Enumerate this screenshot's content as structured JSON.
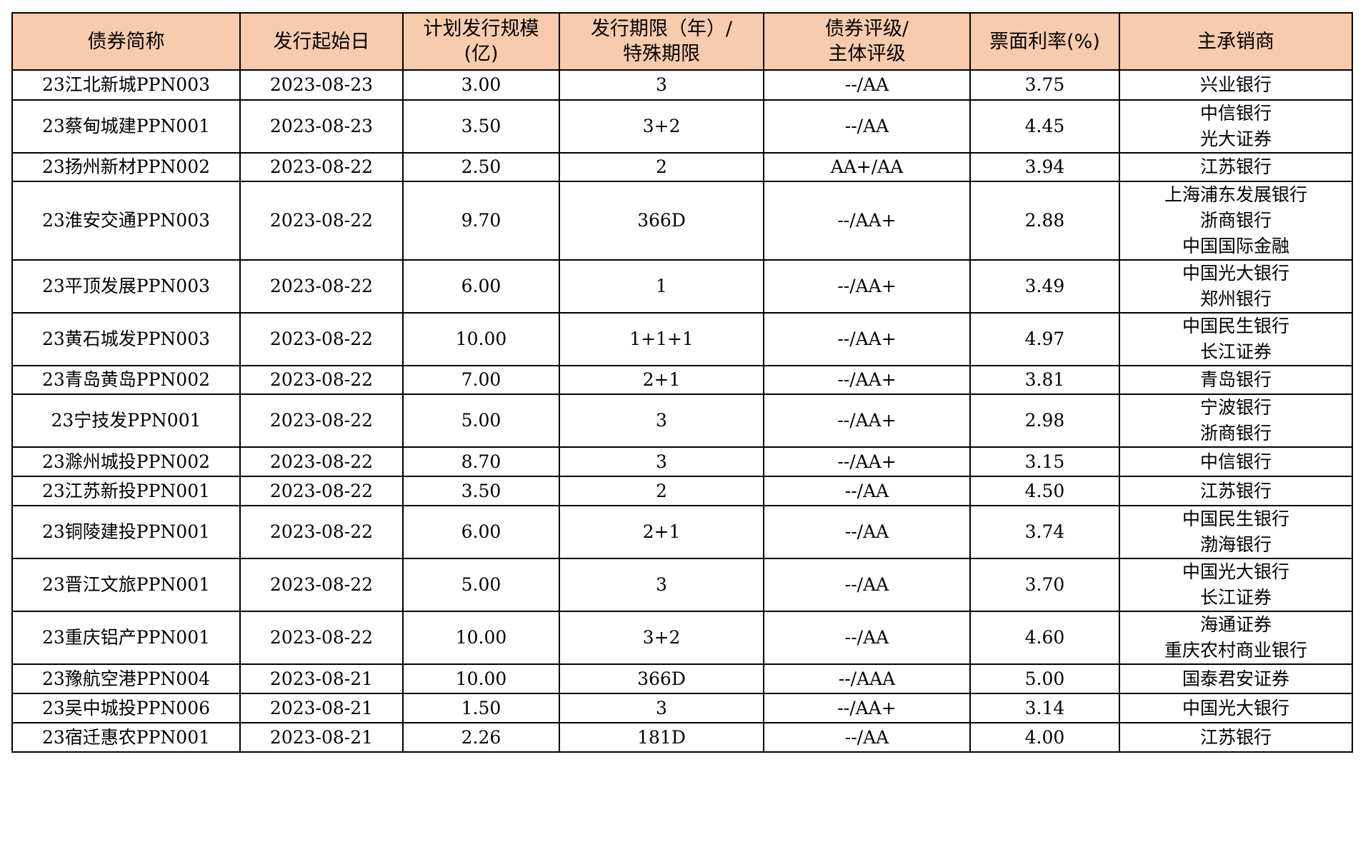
{
  "columns": [
    "债券简称",
    "发行起始日",
    "计划发行规模（亿）",
    "发行期限（年）/特殊期限",
    "债券评级/主体评级",
    "票面利率(%)",
    "主承销商"
  ],
  "header_lines": [
    [
      "债券简称"
    ],
    [
      "发行起始日"
    ],
    [
      "计划发行规模",
      "(亿)"
    ],
    [
      "发行期限（年）/",
      "特殊期限"
    ],
    [
      "债券评级/",
      "主体评级"
    ],
    [
      "票面利率(%)"
    ],
    [
      "主承销商"
    ]
  ],
  "rows": [
    {
      "name": "23江北新城PPN003",
      "date": "2023-08-23",
      "size": "3.00",
      "term": "3",
      "rating": "--/AA",
      "rate": "3.75",
      "underwriters": [
        "兴业银行"
      ]
    },
    {
      "name": "23蔡甸城建PPN001",
      "date": "2023-08-23",
      "size": "3.50",
      "term": "3+2",
      "rating": "--/AA",
      "rate": "4.45",
      "underwriters": [
        "中信银行",
        "光大证券"
      ]
    },
    {
      "name": "23扬州新材PPN002",
      "date": "2023-08-22",
      "size": "2.50",
      "term": "2",
      "rating": "AA+/AA",
      "rate": "3.94",
      "underwriters": [
        "江苏银行"
      ]
    },
    {
      "name": "23淮安交通PPN003",
      "date": "2023-08-22",
      "size": "9.70",
      "term": "366D",
      "rating": "--/AA+",
      "rate": "2.88",
      "underwriters": [
        "上海浦东发展银行",
        "浙商银行",
        "中国国际金融"
      ]
    },
    {
      "name": "23平顶发展PPN003",
      "date": "2023-08-22",
      "size": "6.00",
      "term": "1",
      "rating": "--/AA+",
      "rate": "3.49",
      "underwriters": [
        "中国光大银行",
        "郑州银行"
      ]
    },
    {
      "name": "23黄石城发PPN003",
      "date": "2023-08-22",
      "size": "10.00",
      "term": "1+1+1",
      "rating": "--/AA+",
      "rate": "4.97",
      "underwriters": [
        "中国民生银行",
        "长江证券"
      ]
    },
    {
      "name": "23青岛黄岛PPN002",
      "date": "2023-08-22",
      "size": "7.00",
      "term": "2+1",
      "rating": "--/AA+",
      "rate": "3.81",
      "underwriters": [
        "青岛银行"
      ]
    },
    {
      "name": "23宁技发PPN001",
      "date": "2023-08-22",
      "size": "5.00",
      "term": "3",
      "rating": "--/AA+",
      "rate": "2.98",
      "underwriters": [
        "宁波银行",
        "浙商银行"
      ]
    },
    {
      "name": "23滁州城投PPN002",
      "date": "2023-08-22",
      "size": "8.70",
      "term": "3",
      "rating": "--/AA+",
      "rate": "3.15",
      "underwriters": [
        "中信银行"
      ]
    },
    {
      "name": "23江苏新投PPN001",
      "date": "2023-08-22",
      "size": "3.50",
      "term": "2",
      "rating": "--/AA",
      "rate": "4.50",
      "underwriters": [
        "江苏银行"
      ]
    },
    {
      "name": "23铜陵建投PPN001",
      "date": "2023-08-22",
      "size": "6.00",
      "term": "2+1",
      "rating": "--/AA",
      "rate": "3.74",
      "underwriters": [
        "中国民生银行",
        "渤海银行"
      ]
    },
    {
      "name": "23晋江文旅PPN001",
      "date": "2023-08-22",
      "size": "5.00",
      "term": "3",
      "rating": "--/AA",
      "rate": "3.70",
      "underwriters": [
        "中国光大银行",
        "长江证券"
      ]
    },
    {
      "name": "23重庆铝产PPN001",
      "date": "2023-08-22",
      "size": "10.00",
      "term": "3+2",
      "rating": "--/AA",
      "rate": "4.60",
      "underwriters": [
        "海通证券",
        "重庆农村商业银行"
      ]
    },
    {
      "name": "23豫航空港PPN004",
      "date": "2023-08-21",
      "size": "10.00",
      "term": "366D",
      "rating": "--/AAA",
      "rate": "5.00",
      "underwriters": [
        "国泰君安证券"
      ]
    },
    {
      "name": "23吴中城投PPN006",
      "date": "2023-08-21",
      "size": "1.50",
      "term": "3",
      "rating": "--/AA+",
      "rate": "3.14",
      "underwriters": [
        "中国光大银行"
      ]
    },
    {
      "name": "23宿迁惠农PPN001",
      "date": "2023-08-21",
      "size": "2.26",
      "term": "181D",
      "rating": "--/AA",
      "rate": "4.00",
      "underwriters": [
        "江苏银行"
      ]
    }
  ]
}
